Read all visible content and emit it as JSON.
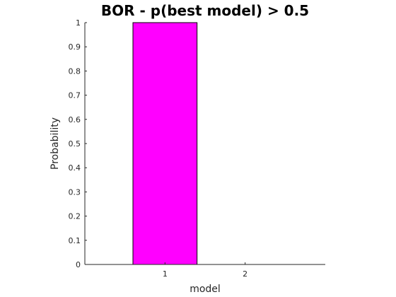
{
  "chart_data": {
    "type": "bar",
    "title": "BOR - p(best model) > 0.5",
    "xlabel": "model",
    "ylabel": "Probability",
    "categories": [
      "1",
      "2"
    ],
    "values": [
      1.0,
      0.0
    ],
    "ylim": [
      0,
      1
    ],
    "xlim": [
      0,
      3
    ],
    "yticks": [
      "0",
      "0.1",
      "0.2",
      "0.3",
      "0.4",
      "0.5",
      "0.6",
      "0.7",
      "0.8",
      "0.9",
      "1"
    ],
    "bar_color": "#ff00ff",
    "grid": false,
    "legend": "none"
  }
}
